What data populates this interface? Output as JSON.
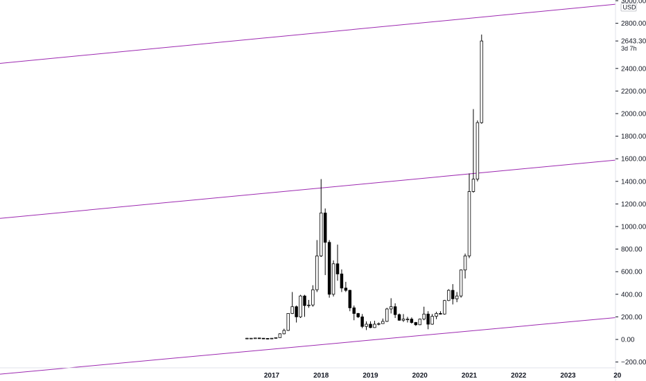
{
  "chart_data": {
    "type": "candlestick",
    "interval": "monthly",
    "currency": "USD",
    "last_price": "2643.30",
    "countdown": "3d 7h",
    "ylim": [
      -250,
      3000
    ],
    "y_ticks": [
      -200,
      0,
      200,
      400,
      600,
      800,
      1000,
      1200,
      1400,
      1600,
      1800,
      2000,
      2200,
      2400,
      2800,
      3000
    ],
    "y_tick_labels": [
      "−200.00",
      "0.00",
      "200.00",
      "400.00",
      "600.00",
      "800.00",
      "1000.00",
      "1200.00",
      "1400.00",
      "1600.00",
      "1800.00",
      "2000.00",
      "2200.00",
      "2400.00",
      "2800.00",
      "3000.00"
    ],
    "x_range": [
      "2015-09",
      "2024-01"
    ],
    "x_tick_labels": [
      {
        "label": "2017",
        "date": "2017-01"
      },
      {
        "label": "2018",
        "date": "2018-01"
      },
      {
        "label": "2019",
        "date": "2019-01"
      },
      {
        "label": "2020",
        "date": "2020-01"
      },
      {
        "label": "2021",
        "date": "2021-01"
      },
      {
        "label": "2022",
        "date": "2022-01"
      },
      {
        "label": "2023",
        "date": "2023-01"
      },
      {
        "label": "20",
        "date": "2024-01"
      }
    ],
    "colors": {
      "up_body": "#ffffff",
      "down_body": "#000000",
      "outline": "#000000",
      "channel": "#9c27b0"
    },
    "channel_lines": [
      {
        "start": {
          "date": "2015-09",
          "value": 2620
        },
        "end": {
          "date": "2024-01",
          "value": 2970
        }
      },
      {
        "start": {
          "date": "2015-09",
          "value": 1245
        },
        "end": {
          "date": "2024-01",
          "value": 1590
        }
      },
      {
        "start": {
          "date": "2015-09",
          "value": -140
        },
        "end": {
          "date": "2024-01",
          "value": 195
        }
      }
    ],
    "candles": [
      {
        "date": "2016-07",
        "open": 9,
        "high": 14,
        "low": 8,
        "close": 11
      },
      {
        "date": "2016-08",
        "open": 11,
        "high": 12,
        "low": 10,
        "close": 11
      },
      {
        "date": "2016-09",
        "open": 11,
        "high": 14,
        "low": 11,
        "close": 13
      },
      {
        "date": "2016-10",
        "open": 13,
        "high": 14,
        "low": 11,
        "close": 11
      },
      {
        "date": "2016-11",
        "open": 11,
        "high": 12,
        "low": 9,
        "close": 9
      },
      {
        "date": "2016-12",
        "open": 9,
        "high": 9,
        "low": 7,
        "close": 8
      },
      {
        "date": "2017-01",
        "open": 8,
        "high": 11,
        "low": 8,
        "close": 11
      },
      {
        "date": "2017-02",
        "open": 11,
        "high": 17,
        "low": 10,
        "close": 16
      },
      {
        "date": "2017-03",
        "open": 16,
        "high": 55,
        "low": 15,
        "close": 50
      },
      {
        "date": "2017-04",
        "open": 50,
        "high": 95,
        "low": 45,
        "close": 80
      },
      {
        "date": "2017-05",
        "open": 80,
        "high": 230,
        "low": 75,
        "close": 230
      },
      {
        "date": "2017-06",
        "open": 230,
        "high": 420,
        "low": 225,
        "close": 290
      },
      {
        "date": "2017-07",
        "open": 290,
        "high": 300,
        "low": 150,
        "close": 200
      },
      {
        "date": "2017-08",
        "open": 200,
        "high": 395,
        "low": 190,
        "close": 385
      },
      {
        "date": "2017-09",
        "open": 385,
        "high": 395,
        "low": 200,
        "close": 300
      },
      {
        "date": "2017-10",
        "open": 300,
        "high": 350,
        "low": 280,
        "close": 305
      },
      {
        "date": "2017-11",
        "open": 305,
        "high": 480,
        "low": 290,
        "close": 440
      },
      {
        "date": "2017-12",
        "open": 440,
        "high": 880,
        "low": 420,
        "close": 740
      },
      {
        "date": "2018-01",
        "open": 740,
        "high": 1420,
        "low": 730,
        "close": 1120
      },
      {
        "date": "2018-02",
        "open": 1120,
        "high": 1160,
        "low": 570,
        "close": 860
      },
      {
        "date": "2018-03",
        "open": 860,
        "high": 880,
        "low": 370,
        "close": 400
      },
      {
        "date": "2018-04",
        "open": 400,
        "high": 700,
        "low": 380,
        "close": 670
      },
      {
        "date": "2018-05",
        "open": 670,
        "high": 840,
        "low": 520,
        "close": 580
      },
      {
        "date": "2018-06",
        "open": 580,
        "high": 620,
        "low": 420,
        "close": 455
      },
      {
        "date": "2018-07",
        "open": 455,
        "high": 510,
        "low": 420,
        "close": 435
      },
      {
        "date": "2018-08",
        "open": 435,
        "high": 440,
        "low": 250,
        "close": 280
      },
      {
        "date": "2018-09",
        "open": 280,
        "high": 300,
        "low": 170,
        "close": 230
      },
      {
        "date": "2018-10",
        "open": 230,
        "high": 235,
        "low": 190,
        "close": 200
      },
      {
        "date": "2018-11",
        "open": 200,
        "high": 225,
        "low": 100,
        "close": 115
      },
      {
        "date": "2018-12",
        "open": 115,
        "high": 160,
        "low": 83,
        "close": 135
      },
      {
        "date": "2019-01",
        "open": 135,
        "high": 160,
        "low": 100,
        "close": 105
      },
      {
        "date": "2019-02",
        "open": 105,
        "high": 165,
        "low": 102,
        "close": 135
      },
      {
        "date": "2019-03",
        "open": 135,
        "high": 150,
        "low": 125,
        "close": 140
      },
      {
        "date": "2019-04",
        "open": 140,
        "high": 185,
        "low": 140,
        "close": 160
      },
      {
        "date": "2019-05",
        "open": 160,
        "high": 280,
        "low": 155,
        "close": 270
      },
      {
        "date": "2019-06",
        "open": 270,
        "high": 365,
        "low": 230,
        "close": 290
      },
      {
        "date": "2019-07",
        "open": 290,
        "high": 320,
        "low": 190,
        "close": 220
      },
      {
        "date": "2019-08",
        "open": 220,
        "high": 230,
        "low": 165,
        "close": 170
      },
      {
        "date": "2019-09",
        "open": 170,
        "high": 225,
        "low": 155,
        "close": 180
      },
      {
        "date": "2019-10",
        "open": 180,
        "high": 200,
        "low": 150,
        "close": 180
      },
      {
        "date": "2019-11",
        "open": 180,
        "high": 195,
        "low": 140,
        "close": 150
      },
      {
        "date": "2019-12",
        "open": 150,
        "high": 155,
        "low": 120,
        "close": 130
      },
      {
        "date": "2020-01",
        "open": 130,
        "high": 185,
        "low": 127,
        "close": 180
      },
      {
        "date": "2020-02",
        "open": 180,
        "high": 290,
        "low": 170,
        "close": 225
      },
      {
        "date": "2020-03",
        "open": 225,
        "high": 250,
        "low": 90,
        "close": 135
      },
      {
        "date": "2020-04",
        "open": 135,
        "high": 225,
        "low": 130,
        "close": 205
      },
      {
        "date": "2020-05",
        "open": 205,
        "high": 245,
        "low": 180,
        "close": 230
      },
      {
        "date": "2020-06",
        "open": 230,
        "high": 250,
        "low": 220,
        "close": 225
      },
      {
        "date": "2020-07",
        "open": 225,
        "high": 350,
        "low": 220,
        "close": 345
      },
      {
        "date": "2020-08",
        "open": 345,
        "high": 445,
        "low": 340,
        "close": 435
      },
      {
        "date": "2020-09",
        "open": 435,
        "high": 490,
        "low": 310,
        "close": 360
      },
      {
        "date": "2020-10",
        "open": 360,
        "high": 420,
        "low": 330,
        "close": 385
      },
      {
        "date": "2020-11",
        "open": 385,
        "high": 620,
        "low": 370,
        "close": 615
      },
      {
        "date": "2020-12",
        "open": 615,
        "high": 760,
        "low": 540,
        "close": 740
      },
      {
        "date": "2021-01",
        "open": 740,
        "high": 1470,
        "low": 720,
        "close": 1310
      },
      {
        "date": "2021-02",
        "open": 1310,
        "high": 2040,
        "low": 1300,
        "close": 1420
      },
      {
        "date": "2021-03",
        "open": 1420,
        "high": 1940,
        "low": 1400,
        "close": 1920
      },
      {
        "date": "2021-04",
        "open": 1920,
        "high": 2700,
        "low": 1910,
        "close": 2643.3
      }
    ]
  }
}
